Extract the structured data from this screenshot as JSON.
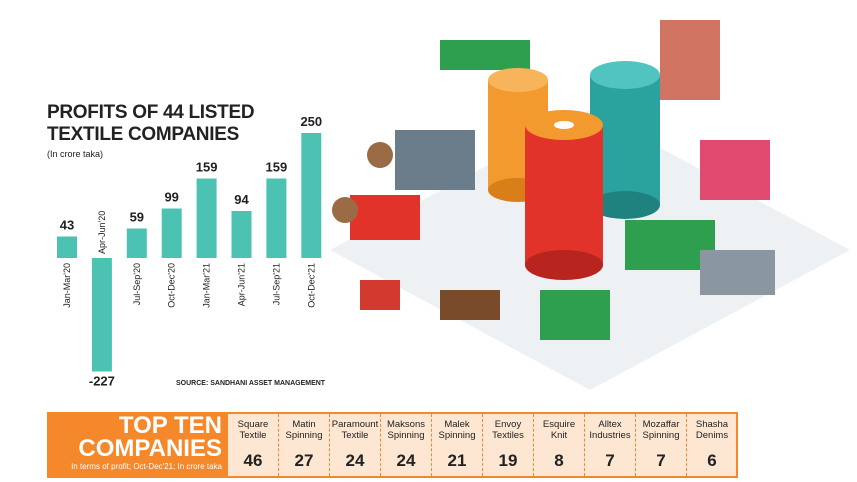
{
  "chart_data": {
    "type": "bar",
    "title": "PROFITS OF 44 LISTED TEXTILE COMPANIES",
    "subtitle": "(In crore taka)",
    "source": "SOURCE: SANDHANI ASSET MANAGEMENT",
    "categories": [
      "Jan-Mar'20",
      "Apr-Jun'20",
      "Jul-Sep'20",
      "Oct-Dec'20",
      "Jan-Mar'21",
      "Apr-Jun'21",
      "Jul-Sep'21",
      "Oct-Dec'21"
    ],
    "values": [
      43,
      -227,
      59,
      99,
      159,
      94,
      159,
      250
    ],
    "color": "#4cc3b2"
  },
  "top_ten": {
    "title": "TOP TEN COMPANIES",
    "note": "In terms of profit; Oct-Dec'21; In crore taka",
    "companies": [
      "Square Textile",
      "Matin Spinning",
      "Paramount Textile",
      "Maksons Spinning",
      "Malek Spinning",
      "Envoy Textiles",
      "Esquire Knit",
      "Alltex Industries",
      "Mozaffar Spinning",
      "Shasha Denims"
    ],
    "values": [
      46,
      27,
      24,
      24,
      21,
      19,
      8,
      7,
      7,
      6
    ]
  }
}
